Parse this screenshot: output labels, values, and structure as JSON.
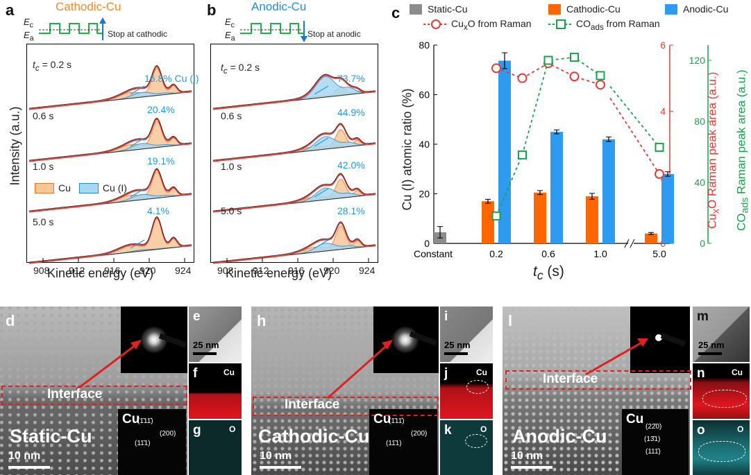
{
  "panel_a": {
    "letter": "a",
    "title": "Cathodic-Cu",
    "ec": "E",
    "ec_sub": "c",
    "ea": "E",
    "ea_sub": "a",
    "stop_text": "Stop at cathodic",
    "ylabel": "Intensity (a.u.)",
    "xlabel": "Kinetic energy (eV)",
    "xticks": [
      "908",
      "912",
      "916",
      "920",
      "924"
    ],
    "rows": [
      {
        "t": "= 0.2 s",
        "pct": "16.8% Cu (I)"
      },
      {
        "t": "0.6 s",
        "pct": "20.4%"
      },
      {
        "t": "1.0 s",
        "pct": "19.1%"
      },
      {
        "t": "5.0 s",
        "pct": "4.1%"
      }
    ],
    "t_prefix": "t",
    "t_sub": "c",
    "legend": [
      "Cu",
      "Cu (I)"
    ]
  },
  "panel_b": {
    "letter": "b",
    "title": "Anodic-Cu",
    "ec": "E",
    "ec_sub": "c",
    "ea": "E",
    "ea_sub": "a",
    "stop_text": "Stop at anodic",
    "xlabel": "Kinetic energy (eV)",
    "xticks": [
      "908",
      "912",
      "916",
      "920",
      "924"
    ],
    "rows": [
      {
        "t": "= 0.2 s",
        "pct": "73.7%"
      },
      {
        "t": "0.6 s",
        "pct": "44.9%"
      },
      {
        "t": "1.0 s",
        "pct": "42.0%"
      },
      {
        "t": "5.0 s",
        "pct": "28.1%"
      }
    ],
    "t_prefix": "t",
    "t_sub": "c"
  },
  "chart_data": {
    "type": "bar",
    "letter": "c",
    "categories": [
      "Constant",
      "0.2",
      "0.6",
      "1.0",
      "5.0"
    ],
    "series": [
      {
        "name": "Static-Cu",
        "color": "#8c8c8c",
        "values": [
          4.5,
          null,
          null,
          null,
          null
        ],
        "errors": [
          2.3,
          null,
          null,
          null,
          null
        ]
      },
      {
        "name": "Cathodic-Cu",
        "color": "#ff6600",
        "values": [
          null,
          17,
          20.5,
          19,
          4
        ],
        "errors": [
          null,
          0.8,
          0.8,
          1.2,
          0.4
        ]
      },
      {
        "name": "Anodic-Cu",
        "color": "#2e9af0",
        "values": [
          null,
          73.7,
          45,
          42,
          28
        ],
        "errors": [
          null,
          3.2,
          0.8,
          0.9,
          0.9
        ]
      }
    ],
    "lines": [
      {
        "name": "CuxO from Raman",
        "color": "#e53935",
        "axis": "right1",
        "x": [
          0.2,
          0.4,
          0.6,
          0.8,
          1.0,
          5.0
        ],
        "y": [
          5.3,
          5.0,
          5.45,
          5.05,
          4.8,
          2.1
        ]
      },
      {
        "name": "COads from Raman",
        "color": "#16a34a",
        "axis": "right2",
        "x": [
          0.2,
          0.4,
          0.6,
          0.8,
          1.0,
          5.0
        ],
        "y": [
          18,
          58,
          120,
          122,
          110,
          63
        ]
      }
    ],
    "xlabel": "t",
    "xlabel_sub": "c",
    "xlabel_unit": " (s)",
    "ylabel": "Cu (I) atomic ratio (%)",
    "ylim": [
      0,
      80
    ],
    "yticks": [
      "0",
      "20",
      "40",
      "60",
      "80"
    ],
    "y2label_pre": "Cu",
    "y2label_sub": "x",
    "y2label_post": "O Raman peak area (a.u.)",
    "y2lim": [
      0,
      6
    ],
    "y2ticks": [
      "0",
      "2",
      "4",
      "6"
    ],
    "y3label_pre": "CO",
    "y3label_sub": "ads",
    "y3label_post": " Raman peak area (a.u.)",
    "y3lim": [
      0,
      130
    ],
    "y3ticks": [
      "0",
      "40",
      "80",
      "120"
    ],
    "legend_text": {
      "static": "Static-Cu",
      "cathodic": "Cathodic-Cu",
      "anodic": "Anodic-Cu",
      "cuxo_pre": "Cu",
      "cuxo_sub": "x",
      "cuxo_post": "O from Raman",
      "co_pre": "CO",
      "co_sub": "ads",
      "co_post": " from Raman"
    }
  },
  "tem": {
    "static": {
      "letter": "d",
      "label": "Static-Cu",
      "interface": "Interface",
      "scale": "10 nm",
      "cu": "Cu",
      "millers": [
        "(1̄11̄)",
        "(200)",
        "(11̄1)"
      ]
    },
    "cathodic": {
      "letter": "h",
      "label": "Cathodic-Cu",
      "interface": "Interface",
      "scale": "10 nm",
      "cu": "Cu",
      "millers": [
        "(1̄11̄)",
        "(200)",
        "(11̄1)"
      ]
    },
    "anodic": {
      "letter": "l",
      "label": "Anodic-Cu",
      "interface": "Interface",
      "scale": "10 nm",
      "cu": "Cu",
      "millers": [
        "(22̄0)",
        "(13̄1)",
        "(111̄)"
      ]
    },
    "side": {
      "e": "e",
      "f": "f",
      "g": "g",
      "i": "i",
      "j": "j",
      "k": "k",
      "m": "m",
      "n": "n",
      "o": "o",
      "scale": "25 nm",
      "cu": "Cu",
      "o_el": "O"
    }
  }
}
